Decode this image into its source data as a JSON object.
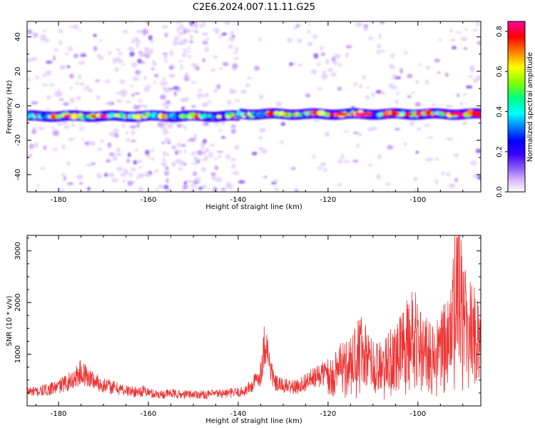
{
  "title": "C2E6.2024.007.11.11.G25",
  "colors": {
    "line": "#ee3333",
    "frame": "#000000"
  },
  "colormap": [
    "#ffffff",
    "#d8b4fe",
    "#8b5cf6",
    "#3b00ff",
    "#0000ff",
    "#0080ff",
    "#00ffff",
    "#00ff80",
    "#80ff00",
    "#ffff00",
    "#ff8000",
    "#ff0000",
    "#ff00a0"
  ],
  "chart_data": [
    {
      "type": "heatmap",
      "xlabel": "Height of straight line (km)",
      "ylabel": "Frequency (Hz)",
      "xlim": [
        -187,
        -86
      ],
      "ylim": [
        -50,
        49
      ],
      "xticks": [
        -180,
        -160,
        -140,
        -120,
        -100
      ],
      "yticks": [
        -40,
        -20,
        0,
        20,
        40
      ],
      "band_center_hz": -6,
      "colorbar": {
        "label": "Normalized spectral amplitude",
        "range": [
          0.0,
          0.85
        ],
        "ticks": [
          "0.0",
          "0.2",
          "0.4",
          "0.6",
          "0.8"
        ],
        "tick_values": [
          0.0,
          0.2,
          0.4,
          0.6,
          0.8
        ]
      }
    },
    {
      "type": "line",
      "xlabel": "Height of straight line (km)",
      "ylabel": "SNR (10 * v/v)",
      "xlim": [
        -187,
        -86
      ],
      "ylim": [
        0,
        3300
      ],
      "xticks": [
        -180,
        -160,
        -140,
        -120,
        -100
      ],
      "yticks": [
        1000,
        2000,
        3000
      ],
      "series": [
        {
          "x": [
            -187,
            -185,
            -183,
            -181,
            -179,
            -177,
            -175,
            -173,
            -171,
            -169,
            -167,
            -165,
            -163,
            -161,
            -159,
            -157,
            -155,
            -153,
            -151,
            -149,
            -147,
            -145,
            -143,
            -141,
            -139,
            -137,
            -135,
            -134,
            -133,
            -132,
            -131,
            -129,
            -127,
            -125,
            -123,
            -121,
            -119,
            -117,
            -115,
            -113,
            -111,
            -109,
            -107,
            -105,
            -103,
            -101,
            -99,
            -97,
            -95,
            -93,
            -91,
            -89,
            -87,
            -86
          ],
          "values": [
            320,
            300,
            340,
            380,
            460,
            560,
            720,
            600,
            480,
            420,
            380,
            330,
            300,
            320,
            260,
            250,
            270,
            240,
            250,
            250,
            240,
            260,
            270,
            280,
            300,
            420,
            700,
            1450,
            900,
            500,
            450,
            420,
            400,
            520,
            600,
            700,
            800,
            1000,
            1200,
            1500,
            1150,
            1000,
            1200,
            1400,
            1550,
            1900,
            1450,
            1300,
            1450,
            1800,
            2900,
            2000,
            1800,
            1550
          ]
        }
      ]
    }
  ]
}
